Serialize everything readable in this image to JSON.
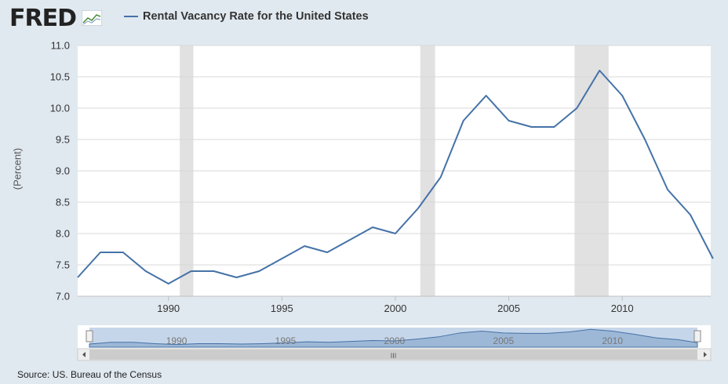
{
  "header": {
    "logo_text": "FRED",
    "legend_label": "Rental Vacancy Rate for the United States",
    "series_color": "#4572a7"
  },
  "source": "Source: US. Bureau of the Census",
  "chart_data": {
    "type": "line",
    "title": "",
    "ylabel": "(Percent)",
    "xlabel": "",
    "ylim": [
      7.0,
      11.0
    ],
    "yticks": [
      "7.0",
      "7.5",
      "8.0",
      "8.5",
      "9.0",
      "9.5",
      "10.0",
      "10.5",
      "11.0"
    ],
    "xlim": [
      1986,
      2013.9
    ],
    "xticks": [
      "1990",
      "1995",
      "2000",
      "2005",
      "2010"
    ],
    "grid": true,
    "series": [
      {
        "name": "Rental Vacancy Rate for the United States",
        "x": [
          1986,
          1987,
          1988,
          1989,
          1990,
          1991,
          1992,
          1993,
          1994,
          1995,
          1996,
          1997,
          1998,
          1999,
          2000,
          2001,
          2002,
          2003,
          2004,
          2005,
          2006,
          2007,
          2008,
          2009,
          2010,
          2011,
          2012,
          2013,
          2014
        ],
        "values": [
          7.3,
          7.7,
          7.7,
          7.4,
          7.2,
          7.4,
          7.4,
          7.3,
          7.4,
          7.6,
          7.8,
          7.7,
          7.9,
          8.1,
          8.0,
          8.4,
          8.9,
          9.8,
          10.2,
          9.8,
          9.7,
          9.7,
          10.0,
          10.6,
          10.2,
          9.5,
          8.7,
          8.3,
          7.6
        ]
      }
    ],
    "recessions": [
      [
        1990.5,
        1991.1
      ],
      [
        2001.1,
        2001.75
      ],
      [
        2007.9,
        2009.4
      ]
    ],
    "navigator": {
      "xticks": [
        "1990",
        "1995",
        "2000",
        "2005",
        "2010"
      ],
      "handle_label": "III"
    }
  }
}
